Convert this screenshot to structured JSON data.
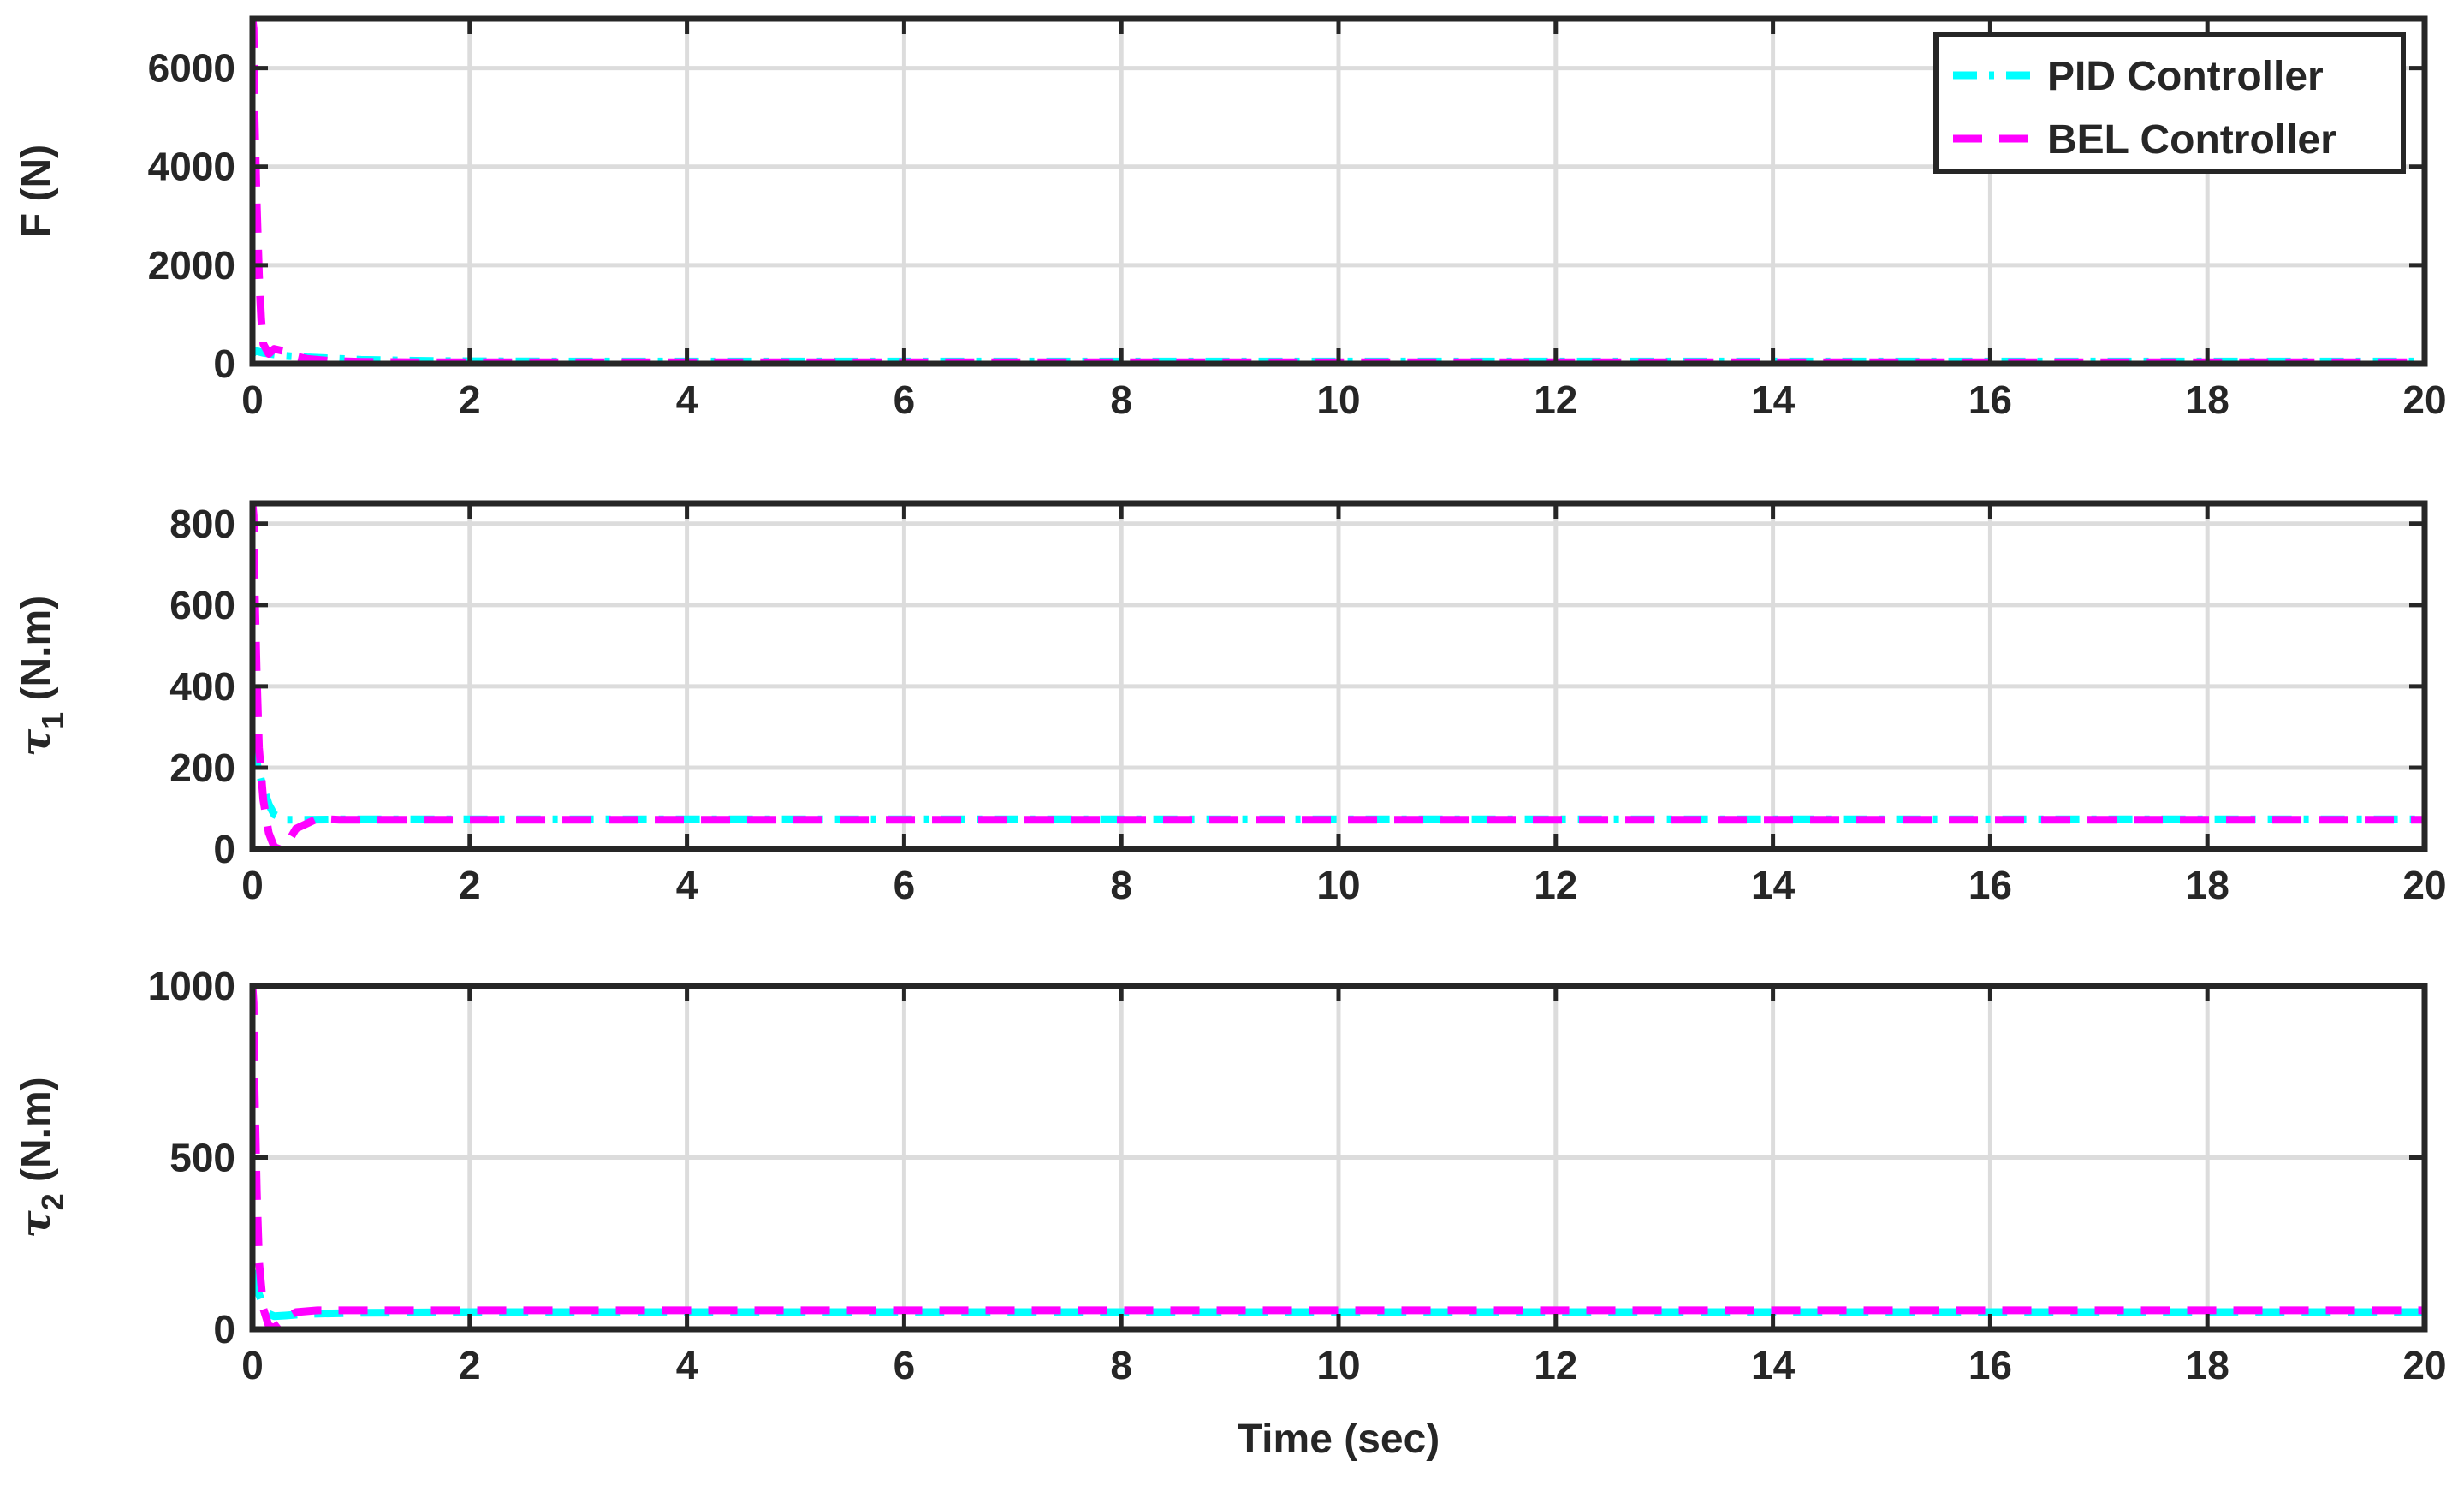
{
  "colors": {
    "pid": "#00ffff",
    "bel": "#ff00ff",
    "axes": "#262626",
    "grid": "#dcdcdc",
    "text": "#262626",
    "background": "#ffffff"
  },
  "legend": {
    "placement": "top-right",
    "entries": [
      "PID Controller",
      "BEL Controller"
    ]
  },
  "xlabel": "Time (sec)",
  "chart_data": [
    {
      "type": "line",
      "title": "",
      "ylabel": "F (N)",
      "ylabel_symbol": "",
      "ylabel_subscript": "",
      "ylabel_unit": "",
      "xlim": [
        0,
        20
      ],
      "ylim": [
        0,
        7000
      ],
      "xticks": [
        "0",
        "2",
        "4",
        "6",
        "8",
        "10",
        "12",
        "14",
        "16",
        "18",
        "20"
      ],
      "yticks": [
        "0",
        "2000",
        "4000",
        "6000"
      ],
      "ytick_values": [
        0,
        2000,
        4000,
        6000
      ],
      "grid": true,
      "show_legend": true,
      "series": [
        {
          "name": "PID Controller",
          "style": "dash-dot",
          "x": [
            0,
            0.02,
            0.05,
            0.1,
            0.2,
            0.3,
            0.5,
            0.8,
            1.0,
            1.5,
            2,
            3,
            4,
            6,
            8,
            10,
            12,
            14,
            16,
            18,
            20
          ],
          "y": [
            200,
            260,
            250,
            220,
            190,
            160,
            130,
            100,
            80,
            60,
            50,
            45,
            45,
            45,
            45,
            45,
            45,
            45,
            45,
            45,
            45
          ]
        },
        {
          "name": "BEL Controller",
          "style": "dash",
          "x": [
            0,
            0.01,
            0.02,
            0.04,
            0.06,
            0.08,
            0.1,
            0.15,
            0.2,
            0.3,
            0.4,
            0.5,
            0.7,
            1.0,
            1.5,
            2,
            4,
            6,
            8,
            10,
            12,
            14,
            16,
            18,
            20
          ],
          "y": [
            7000,
            6800,
            5000,
            3200,
            1800,
            900,
            400,
            200,
            300,
            250,
            150,
            100,
            60,
            40,
            30,
            30,
            30,
            30,
            30,
            30,
            30,
            30,
            30,
            30,
            30
          ]
        }
      ]
    },
    {
      "type": "line",
      "title": "",
      "ylabel": "",
      "ylabel_symbol": "τ",
      "ylabel_subscript": "1",
      "ylabel_unit": "(N.m)",
      "xlim": [
        0,
        20
      ],
      "ylim": [
        0,
        850
      ],
      "xticks": [
        "0",
        "2",
        "4",
        "6",
        "8",
        "10",
        "12",
        "14",
        "16",
        "18",
        "20"
      ],
      "yticks": [
        "0",
        "200",
        "400",
        "600",
        "800"
      ],
      "ytick_values": [
        0,
        200,
        400,
        600,
        800
      ],
      "grid": true,
      "show_legend": false,
      "series": [
        {
          "name": "PID Controller",
          "style": "dash-dot",
          "x": [
            0,
            0.02,
            0.05,
            0.1,
            0.15,
            0.2,
            0.3,
            0.5,
            0.8,
            1.0,
            2,
            4,
            6,
            8,
            10,
            12,
            14,
            16,
            18,
            20
          ],
          "y": [
            260,
            240,
            200,
            150,
            110,
            85,
            72,
            72,
            73,
            73,
            73,
            73,
            73,
            73,
            73,
            73,
            73,
            73,
            73,
            73
          ]
        },
        {
          "name": "BEL Controller",
          "style": "dash",
          "x": [
            0,
            0.01,
            0.02,
            0.04,
            0.06,
            0.1,
            0.15,
            0.2,
            0.25,
            0.3,
            0.4,
            0.6,
            0.8,
            1.0,
            2,
            4,
            6,
            8,
            10,
            12,
            14,
            16,
            18,
            20
          ],
          "y": [
            850,
            820,
            650,
            420,
            250,
            120,
            40,
            5,
            0,
            5,
            50,
            75,
            72,
            72,
            72,
            72,
            72,
            72,
            72,
            72,
            72,
            72,
            72,
            72
          ]
        }
      ]
    },
    {
      "type": "line",
      "title": "",
      "ylabel": "",
      "ylabel_symbol": "τ",
      "ylabel_subscript": "2",
      "ylabel_unit": "(N.m)",
      "xlim": [
        0,
        20
      ],
      "ylim": [
        0,
        1000
      ],
      "xticks": [
        "0",
        "2",
        "4",
        "6",
        "8",
        "10",
        "12",
        "14",
        "16",
        "18",
        "20"
      ],
      "yticks": [
        "0",
        "500",
        "1000"
      ],
      "ytick_values": [
        0,
        500,
        1000
      ],
      "grid": true,
      "show_legend": false,
      "series": [
        {
          "name": "PID Controller",
          "style": "dash",
          "x": [
            0,
            0.02,
            0.05,
            0.1,
            0.15,
            0.2,
            0.3,
            0.5,
            1.0,
            2,
            4,
            6,
            8,
            10,
            12,
            14,
            16,
            18,
            20
          ],
          "y": [
            170,
            150,
            110,
            70,
            45,
            38,
            40,
            45,
            48,
            50,
            50,
            50,
            50,
            50,
            50,
            50,
            50,
            50,
            50
          ]
        },
        {
          "name": "BEL Controller",
          "style": "dash",
          "x": [
            0,
            0.01,
            0.02,
            0.04,
            0.06,
            0.1,
            0.15,
            0.2,
            0.3,
            0.4,
            0.6,
            1.0,
            2,
            4,
            6,
            8,
            10,
            12,
            14,
            16,
            18,
            20
          ],
          "y": [
            1000,
            950,
            700,
            400,
            200,
            60,
            10,
            5,
            30,
            50,
            55,
            55,
            55,
            55,
            55,
            55,
            55,
            55,
            55,
            55,
            55,
            55
          ]
        }
      ]
    }
  ]
}
